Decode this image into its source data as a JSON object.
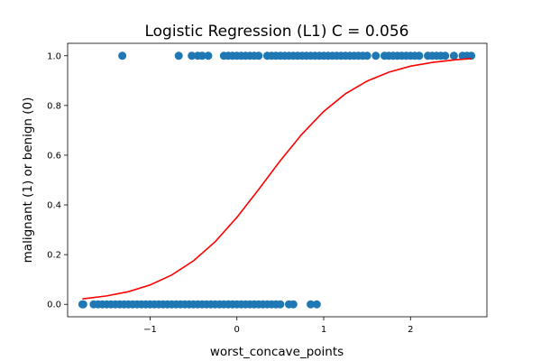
{
  "chart_data": {
    "type": "scatter",
    "title": "Logistic Regression (L1) C = 0.056",
    "xlabel": "worst_concave_points",
    "ylabel": "malignant (1) or benign (0)",
    "xlim": [
      -1.95,
      2.88
    ],
    "ylim": [
      -0.05,
      1.05
    ],
    "xticks": [
      -1,
      0,
      1,
      2
    ],
    "xtick_labels": [
      "−1",
      "0",
      "1",
      "2"
    ],
    "yticks": [
      0.0,
      0.2,
      0.4,
      0.6,
      0.8,
      1.0
    ],
    "ytick_labels": [
      "0.0",
      "0.2",
      "0.4",
      "0.6",
      "0.8",
      "1.0"
    ],
    "grid": false,
    "legend": false,
    "marker_color": "#1f77b4",
    "curve_color": "#ff0000",
    "series": [
      {
        "kind": "points",
        "class": 1,
        "x": [
          -1.32,
          -0.67,
          -0.52,
          -0.45,
          -0.4,
          -0.33,
          -0.15,
          -0.1,
          -0.05,
          0.0,
          0.05,
          0.1,
          0.15,
          0.2,
          0.25,
          0.35,
          0.4,
          0.45,
          0.5,
          0.55,
          0.6,
          0.65,
          0.7,
          0.75,
          0.8,
          0.85,
          0.9,
          0.95,
          1.0,
          1.05,
          1.1,
          1.15,
          1.2,
          1.25,
          1.3,
          1.35,
          1.4,
          1.45,
          1.5,
          1.6,
          1.7,
          1.75,
          1.8,
          1.85,
          1.9,
          1.95,
          2.0,
          2.05,
          2.1,
          2.2,
          2.25,
          2.3,
          2.35,
          2.4,
          2.5,
          2.6,
          2.65,
          2.7
        ],
        "y": [
          1,
          1,
          1,
          1,
          1,
          1,
          1,
          1,
          1,
          1,
          1,
          1,
          1,
          1,
          1,
          1,
          1,
          1,
          1,
          1,
          1,
          1,
          1,
          1,
          1,
          1,
          1,
          1,
          1,
          1,
          1,
          1,
          1,
          1,
          1,
          1,
          1,
          1,
          1,
          1,
          1,
          1,
          1,
          1,
          1,
          1,
          1,
          1,
          1,
          1,
          1,
          1,
          1,
          1,
          1,
          1,
          1,
          1
        ]
      },
      {
        "kind": "points",
        "class": 0,
        "x": [
          -1.78,
          -1.77,
          -1.65,
          -1.6,
          -1.55,
          -1.5,
          -1.45,
          -1.4,
          -1.35,
          -1.3,
          -1.25,
          -1.2,
          -1.15,
          -1.1,
          -1.05,
          -1.0,
          -0.95,
          -0.9,
          -0.85,
          -0.8,
          -0.75,
          -0.7,
          -0.65,
          -0.6,
          -0.55,
          -0.5,
          -0.45,
          -0.4,
          -0.35,
          -0.3,
          -0.25,
          -0.2,
          -0.15,
          -0.1,
          -0.05,
          0.0,
          0.05,
          0.1,
          0.15,
          0.2,
          0.25,
          0.3,
          0.35,
          0.4,
          0.45,
          0.5,
          0.6,
          0.65,
          0.85,
          0.92
        ],
        "y": [
          0,
          0,
          0,
          0,
          0,
          0,
          0,
          0,
          0,
          0,
          0,
          0,
          0,
          0,
          0,
          0,
          0,
          0,
          0,
          0,
          0,
          0,
          0,
          0,
          0,
          0,
          0,
          0,
          0,
          0,
          0,
          0,
          0,
          0,
          0,
          0,
          0,
          0,
          0,
          0,
          0,
          0,
          0,
          0,
          0,
          0,
          0,
          0,
          0,
          0
        ]
      },
      {
        "kind": "curve",
        "x": [
          -1.78,
          -1.5,
          -1.25,
          -1.0,
          -0.75,
          -0.5,
          -0.25,
          0.0,
          0.25,
          0.5,
          0.75,
          1.0,
          1.25,
          1.5,
          1.75,
          2.0,
          2.25,
          2.5,
          2.7
        ],
        "y": [
          0.022,
          0.034,
          0.051,
          0.078,
          0.118,
          0.175,
          0.252,
          0.35,
          0.462,
          0.578,
          0.685,
          0.776,
          0.847,
          0.898,
          0.934,
          0.958,
          0.973,
          0.983,
          0.989
        ]
      }
    ]
  }
}
